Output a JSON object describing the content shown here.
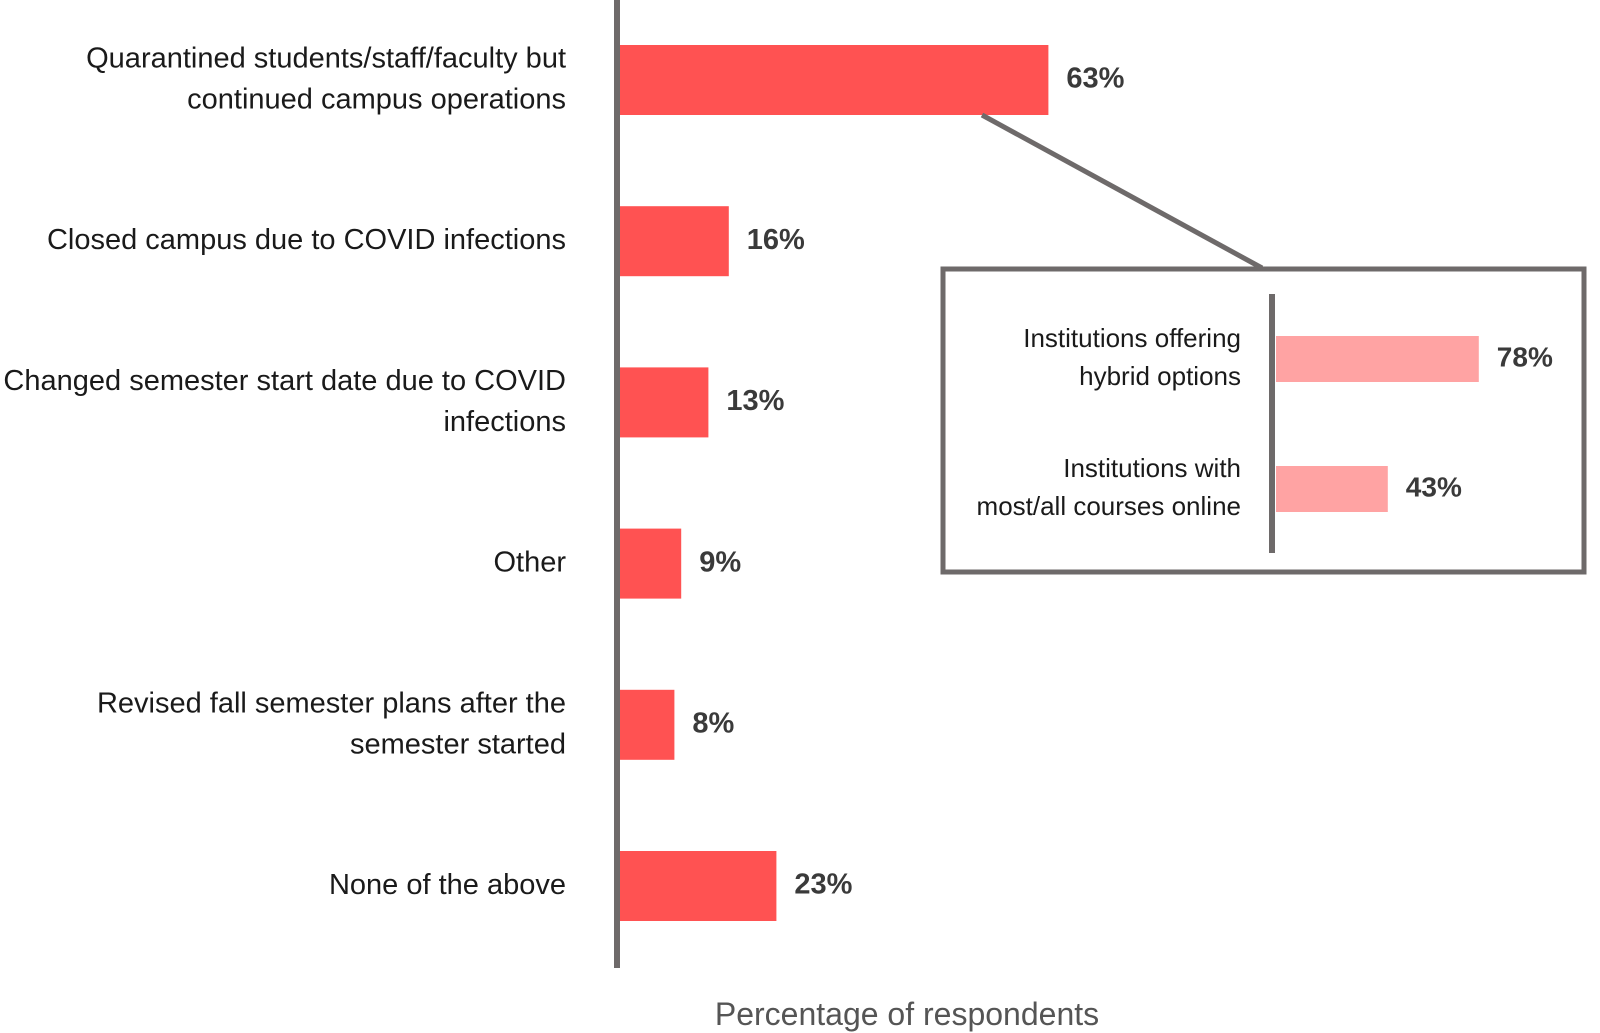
{
  "chart_data": [
    {
      "type": "bar",
      "orientation": "horizontal",
      "categories": [
        [
          "Quarantined students/staff/faculty but",
          "continued campus operations"
        ],
        [
          "Closed campus due to COVID infections"
        ],
        [
          "Changed semester start date due to COVID",
          "infections"
        ],
        [
          "Other"
        ],
        [
          "Revised fall semester plans after the",
          "semester started"
        ],
        [
          "None of the above"
        ]
      ],
      "values": [
        63,
        16,
        13,
        9,
        8,
        23
      ],
      "value_labels": [
        "63%",
        "16%",
        "13%",
        "9%",
        "8%",
        "23%"
      ],
      "xlabel": "Percentage of respondents",
      "xlim": [
        0,
        100
      ],
      "color": "#ff5252",
      "grid": false
    },
    {
      "type": "bar",
      "orientation": "horizontal",
      "inset_of": "Quarantined students/staff/faculty but continued campus operations",
      "categories": [
        [
          "Institutions offering",
          "hybrid options"
        ],
        [
          "Institutions with",
          "most/all courses online"
        ]
      ],
      "values": [
        78,
        43
      ],
      "value_labels": [
        "78%",
        "43%"
      ],
      "xlim": [
        0,
        100
      ],
      "color": "#ffa3a3",
      "grid": false
    }
  ],
  "colors": {
    "axis": "#6e6a6a",
    "text": "#1a1a1a",
    "value_text": "#3a3a3a"
  }
}
